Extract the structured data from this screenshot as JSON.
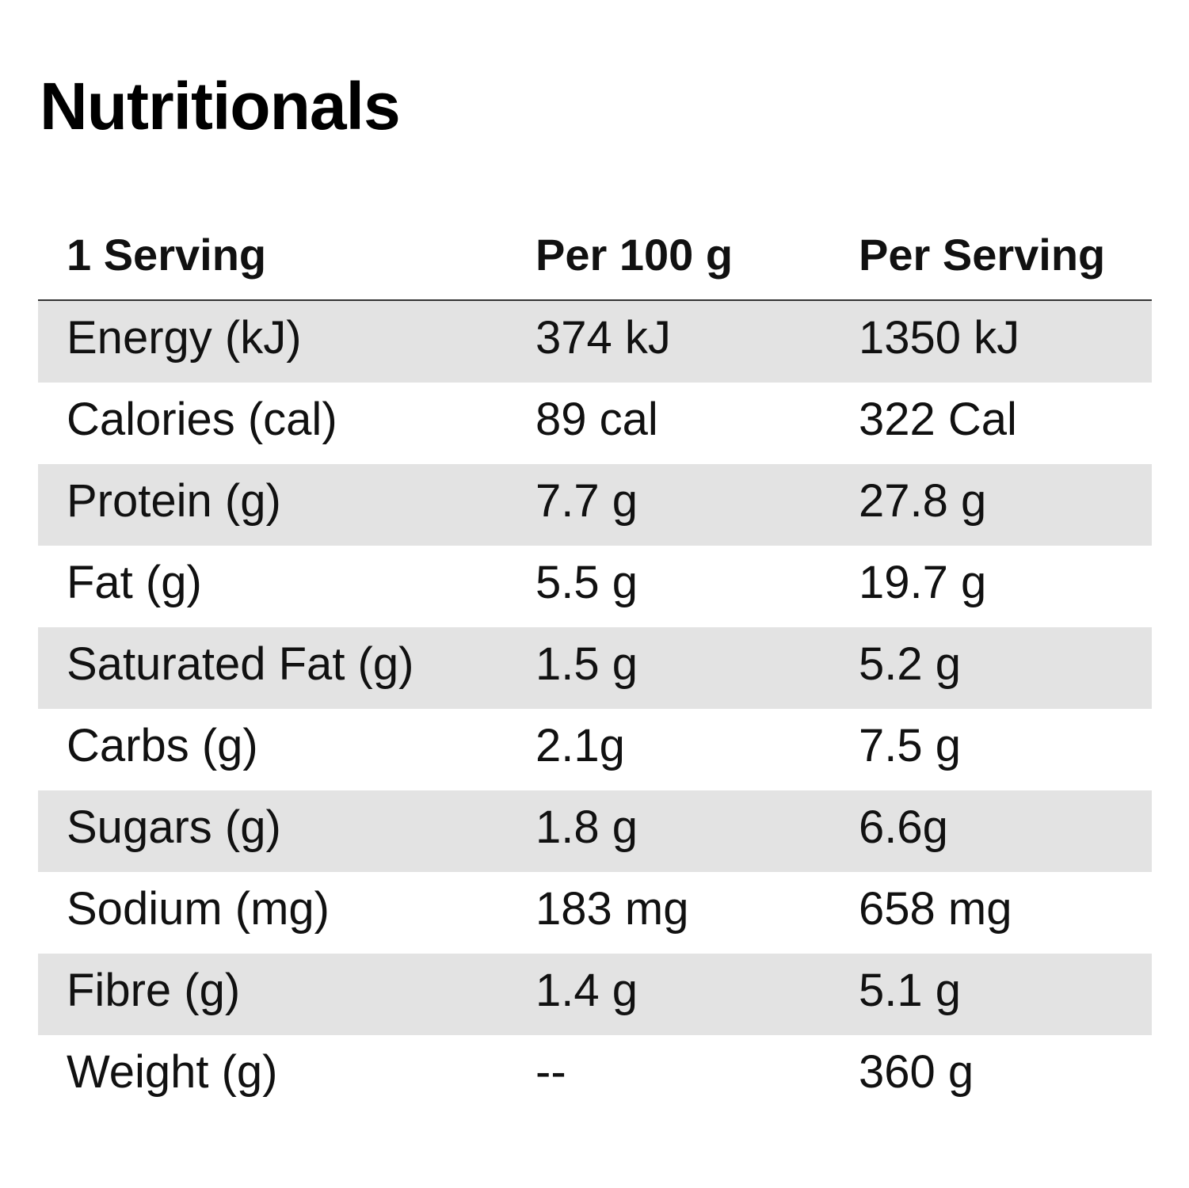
{
  "title": "Nutritionals",
  "table": {
    "headers": [
      "1 Serving",
      "Per 100 g",
      "Per Serving"
    ],
    "rows": [
      {
        "label": "Energy (kJ)",
        "per100": "374 kJ",
        "perServing": "1350 kJ"
      },
      {
        "label": "Calories (cal)",
        "per100": "89 cal",
        "perServing": "322 Cal"
      },
      {
        "label": "Protein (g)",
        "per100": "7.7 g",
        "perServing": "27.8 g"
      },
      {
        "label": "Fat (g)",
        "per100": "5.5 g",
        "perServing": "19.7 g"
      },
      {
        "label": "Saturated Fat (g)",
        "per100": "1.5 g",
        "perServing": "5.2 g"
      },
      {
        "label": "Carbs (g)",
        "per100": "2.1g",
        "perServing": "7.5 g"
      },
      {
        "label": "Sugars (g)",
        "per100": "1.8 g",
        "perServing": "6.6g"
      },
      {
        "label": "Sodium (mg)",
        "per100": "183 mg",
        "perServing": "658 mg"
      },
      {
        "label": "Fibre (g)",
        "per100": "1.4 g",
        "perServing": "5.1 g"
      },
      {
        "label": "Weight (g)",
        "per100": "--",
        "perServing": "360 g"
      }
    ]
  },
  "colors": {
    "shaded_row": "#e3e3e3",
    "text": "#111111",
    "header_rule": "#333333"
  }
}
